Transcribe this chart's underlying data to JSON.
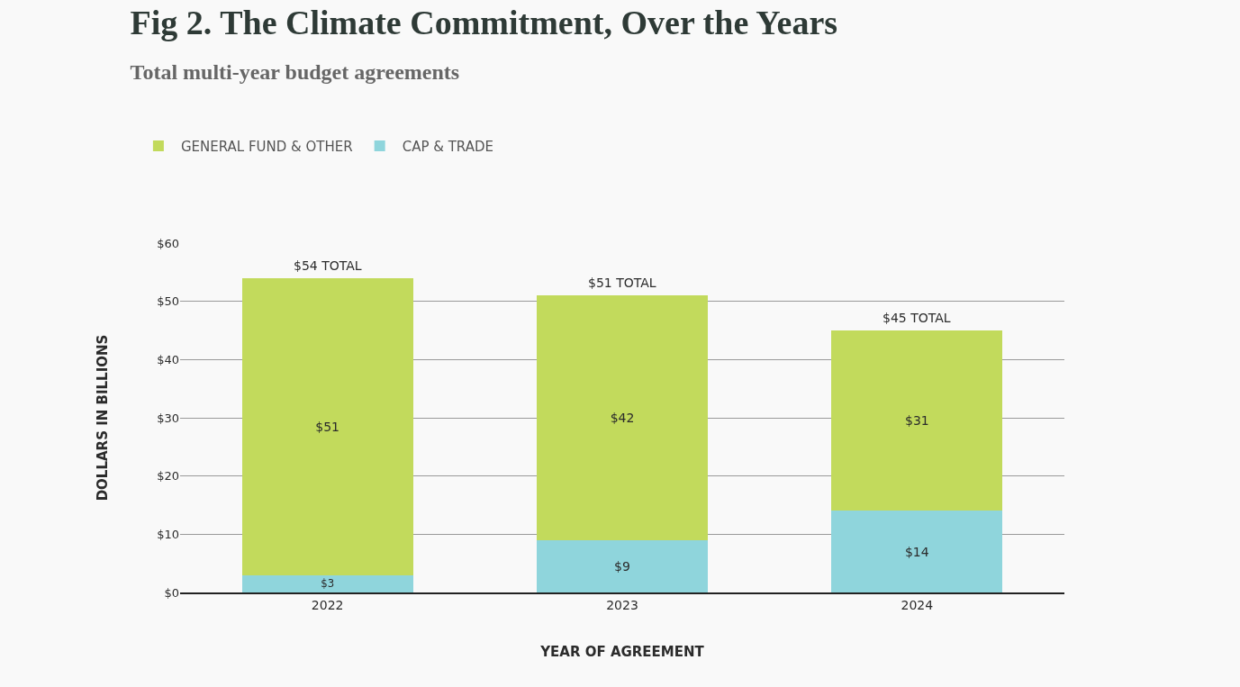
{
  "chart_data": {
    "type": "bar",
    "title": "Fig 2. The Climate Commitment, Over the Years",
    "subtitle": "Total multi-year budget agreements",
    "xlabel": "YEAR OF AGREEMENT",
    "ylabel": "DOLLARS IN BILLIONS",
    "categories": [
      "2022",
      "2023",
      "2024"
    ],
    "series": [
      {
        "name": "CAP & TRADE",
        "color": "#8fd5dc",
        "values": [
          3,
          9,
          14
        ],
        "value_labels": [
          "$3",
          "$9",
          "$14"
        ]
      },
      {
        "name": "GENERAL FUND & OTHER",
        "color": "#c2da5c",
        "values": [
          51,
          42,
          31
        ],
        "value_labels": [
          "$51",
          "$42",
          "$31"
        ]
      }
    ],
    "stacked": true,
    "totals": [
      "$54 TOTAL",
      "$51 TOTAL",
      "$45 TOTAL"
    ],
    "ylim": [
      0,
      60
    ],
    "yticks": [
      {
        "value": 0,
        "label": "$0"
      },
      {
        "value": 10,
        "label": "$10"
      },
      {
        "value": 20,
        "label": "$20"
      },
      {
        "value": 30,
        "label": "$30"
      },
      {
        "value": 40,
        "label": "$40"
      },
      {
        "value": 50,
        "label": "$50"
      },
      {
        "value": 60,
        "label": "$60"
      }
    ],
    "grid": "y",
    "legend": "top left"
  }
}
